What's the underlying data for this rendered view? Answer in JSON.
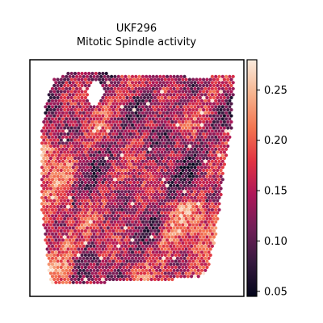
{
  "chart_data": {
    "type": "heatmap",
    "subtype": "spatial-spot-map",
    "title_line1": "UKF296",
    "title_line2": "Mitotic Spindle activity",
    "colormap": "rocket",
    "colorbar": {
      "vmin": 0.045,
      "vmax": 0.28,
      "ticks": [
        0.05,
        0.1,
        0.15,
        0.2,
        0.25
      ],
      "tick_labels": [
        "0.05",
        "0.10",
        "0.15",
        "0.20",
        "0.25"
      ]
    },
    "value_range": [
      0.05,
      0.27
    ],
    "typical_value": 0.15,
    "grid": false,
    "axes_ticks_visible": false,
    "colors": {
      "rocket_stops": [
        "#03051a",
        "#35193e",
        "#701f57",
        "#ad1759",
        "#e13342",
        "#f37651",
        "#f6b48f",
        "#faebdd"
      ]
    }
  }
}
